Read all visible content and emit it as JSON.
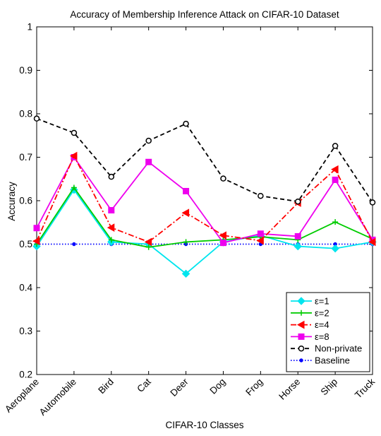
{
  "chart_data": {
    "type": "line",
    "title": "Accuracy of Membership Inference Attack on CIFAR-10 Dataset",
    "xlabel": "CIFAR-10 Classes",
    "ylabel": "Accuracy",
    "ylim": [
      0.2,
      1.0
    ],
    "yticks": [
      "0.2",
      "0.3",
      "0.4",
      "0.5",
      "0.6",
      "0.7",
      "0.8",
      "0.9",
      "1"
    ],
    "categories": [
      "Aeroplane",
      "Automobile",
      "Bird",
      "Cat",
      "Deer",
      "Dog",
      "Frog",
      "Horse",
      "Ship",
      "Truck"
    ],
    "grid": false,
    "legend_position": "bottom-right",
    "series": [
      {
        "name": "ε=1",
        "color": "#00e5ee",
        "marker": "diamond",
        "dash": "solid",
        "values": [
          0.495,
          0.625,
          0.505,
          0.5,
          0.432,
          0.505,
          0.52,
          0.495,
          0.49,
          0.505
        ]
      },
      {
        "name": "ε=2",
        "color": "#00cc00",
        "marker": "plus",
        "dash": "solid",
        "values": [
          0.5,
          0.63,
          0.51,
          0.493,
          0.505,
          0.51,
          0.517,
          0.51,
          0.551,
          0.512
        ]
      },
      {
        "name": "ε=4",
        "color": "#ff0000",
        "marker": "triangle-left",
        "dash": "dashdot",
        "values": [
          0.507,
          0.703,
          0.538,
          0.505,
          0.572,
          0.52,
          0.508,
          0.595,
          0.672,
          0.505
        ]
      },
      {
        "name": "ε=8",
        "color": "#ee00ee",
        "marker": "square",
        "dash": "solid",
        "values": [
          0.537,
          0.7,
          0.578,
          0.689,
          0.622,
          0.503,
          0.524,
          0.518,
          0.648,
          0.51
        ]
      },
      {
        "name": "Non-private",
        "color": "#000000",
        "marker": "circle",
        "dash": "dashed",
        "values": [
          0.789,
          0.756,
          0.655,
          0.738,
          0.777,
          0.651,
          0.611,
          0.598,
          0.726,
          0.596
        ]
      },
      {
        "name": "Baseline",
        "color": "#0000ff",
        "marker": "dot",
        "dash": "dotted",
        "values": [
          0.5,
          0.5,
          0.5,
          0.5,
          0.5,
          0.5,
          0.5,
          0.5,
          0.5,
          0.5
        ]
      }
    ]
  }
}
